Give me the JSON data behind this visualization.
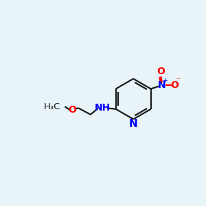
{
  "bg_color": "#e8f4f8",
  "bond_color": "#1a1a1a",
  "nitrogen_color": "#0000ff",
  "oxygen_color": "#ff0000",
  "line_width": 1.6,
  "font_size": 10,
  "fig_width": 3.0,
  "fig_height": 3.0,
  "dpi": 100,
  "xlim": [
    0,
    10
  ],
  "ylim": [
    0,
    10
  ]
}
